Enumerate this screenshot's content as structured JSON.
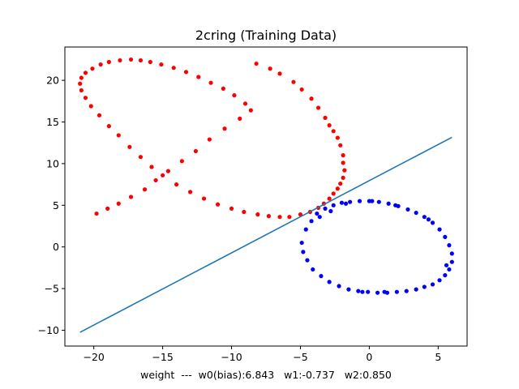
{
  "chart_data": {
    "type": "scatter",
    "title": "2cring (Training Data)",
    "xlabel": "weight  ---  w0(bias):6.843   w1:-0.737   w2:0.850",
    "ylabel": "",
    "xlim": [
      -22.1,
      7.1
    ],
    "ylim": [
      -11.9,
      24.0
    ],
    "xticks": [
      -20,
      -15,
      -10,
      -5,
      0,
      5
    ],
    "yticks": [
      -10,
      -5,
      0,
      5,
      10,
      15,
      20
    ],
    "xtick_labels": [
      "−20",
      "−15",
      "−10",
      "−5",
      "0",
      "5"
    ],
    "ytick_labels": [
      "−10",
      "−5",
      "0",
      "5",
      "10",
      "15",
      "20"
    ],
    "grid": false,
    "weights": {
      "w0_bias": 6.843,
      "w1": -0.737,
      "w2": 0.85
    },
    "series": [
      {
        "kind": "scatter",
        "color": "#ff0000",
        "x": [
          -8.2,
          -7.2,
          -6.5,
          -5.5,
          -4.9,
          -4.2,
          -3.7,
          -3.2,
          -2.9,
          -2.6,
          -2.3,
          -2.1,
          -1.9,
          -1.9,
          -1.8,
          -1.9,
          -2.1,
          -2.3,
          -2.6,
          -2.9,
          -3.3,
          -3.7,
          -4.3,
          -5.0,
          -5.8,
          -6.5,
          -7.3,
          -8.1,
          -9.1,
          -10.0,
          -11.0,
          -12.0,
          -13.0,
          -14.0,
          -15.0,
          -15.8,
          -16.6,
          -17.4,
          -18.2,
          -18.9,
          -19.6,
          -20.2,
          -20.6,
          -20.9,
          -21.0,
          -20.9,
          -20.6,
          -20.1,
          -19.5,
          -18.9,
          -18.1,
          -17.3,
          -16.6,
          -15.9,
          -15.1,
          -14.2,
          -13.3,
          -12.4,
          -11.5,
          -10.6,
          -9.8,
          -9.0,
          -8.6,
          -9.4,
          -10.5,
          -11.6,
          -12.6,
          -13.6,
          -14.6,
          -15.5,
          -16.3,
          -17.3,
          -18.2,
          -19.0,
          -19.8
        ],
        "y": [
          22.0,
          21.4,
          20.8,
          19.8,
          18.9,
          17.8,
          16.7,
          15.5,
          14.6,
          13.9,
          13.1,
          12.2,
          11.0,
          10.1,
          9.2,
          8.3,
          7.6,
          7.0,
          6.4,
          5.8,
          5.2,
          4.7,
          4.2,
          3.9,
          3.6,
          3.6,
          3.7,
          3.9,
          4.2,
          4.6,
          5.1,
          5.8,
          6.6,
          7.5,
          8.6,
          9.6,
          10.8,
          12.0,
          13.4,
          14.5,
          15.8,
          16.9,
          17.9,
          18.8,
          19.6,
          20.3,
          20.9,
          21.4,
          21.9,
          22.2,
          22.4,
          22.5,
          22.4,
          22.2,
          21.9,
          21.5,
          21.0,
          20.4,
          19.7,
          19.0,
          18.2,
          17.2,
          16.4,
          15.4,
          14.2,
          12.9,
          11.5,
          10.3,
          9.1,
          8.0,
          6.9,
          6.0,
          5.2,
          4.6,
          4.0
        ]
      },
      {
        "kind": "scatter",
        "color": "#0000ff",
        "x": [
          -4.9,
          -4.6,
          -4.2,
          -3.8,
          -3.2,
          -2.6,
          -2.0,
          -1.4,
          -0.7,
          0.0,
          0.7,
          1.4,
          2.1,
          2.8,
          3.4,
          4.0,
          4.6,
          5.1,
          5.5,
          5.8,
          6.0,
          6.0,
          5.8,
          5.5,
          5.1,
          4.6,
          4.0,
          3.4,
          2.7,
          2.0,
          1.3,
          0.6,
          -0.1,
          -0.8,
          -1.5,
          -2.2,
          -2.9,
          -3.5,
          -4.1,
          -4.5,
          -4.8,
          -3.6,
          -1.7,
          1.9,
          4.3,
          5.6,
          0.2,
          -0.5,
          1.1,
          -2.8
        ],
        "y": [
          0.5,
          2.1,
          3.1,
          4.0,
          4.6,
          5.0,
          5.3,
          5.4,
          5.5,
          5.5,
          5.4,
          5.2,
          4.9,
          4.5,
          4.1,
          3.6,
          2.9,
          2.1,
          1.2,
          0.2,
          -0.8,
          -1.8,
          -2.7,
          -3.4,
          -4.0,
          -4.5,
          -4.8,
          -5.1,
          -5.3,
          -5.4,
          -5.5,
          -5.5,
          -5.4,
          -5.3,
          -5.1,
          -4.7,
          -4.2,
          -3.5,
          -2.7,
          -1.6,
          -0.6,
          3.6,
          5.2,
          5.0,
          3.3,
          -2.2,
          5.5,
          -5.4,
          -5.4,
          4.3
        ]
      },
      {
        "kind": "line",
        "color": "#1f77b4",
        "x": [
          -21,
          6
        ],
        "y": [
          -10.25,
          13.16
        ]
      }
    ]
  }
}
